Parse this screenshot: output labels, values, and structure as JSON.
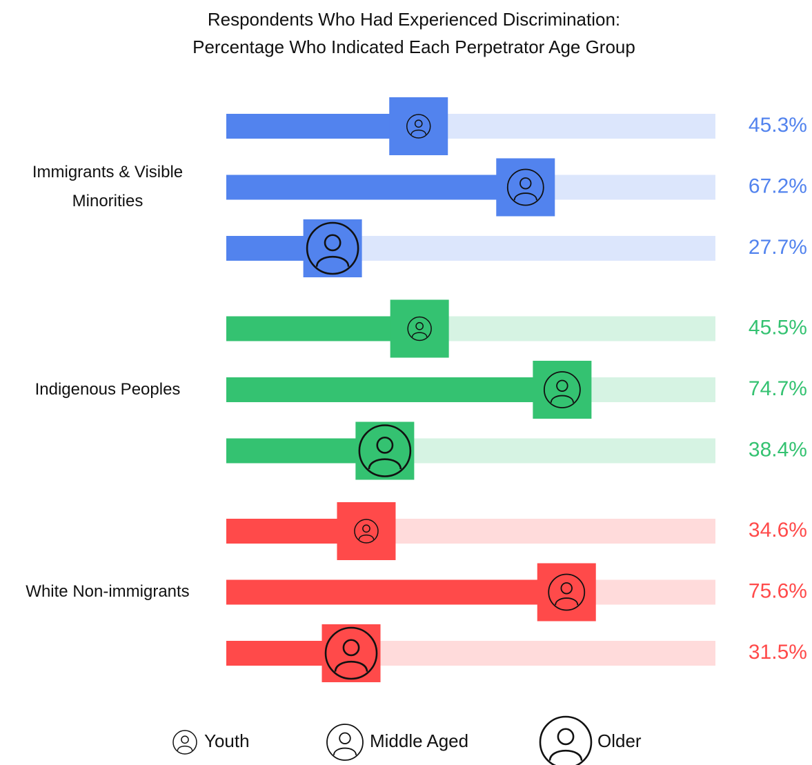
{
  "chart_data": {
    "type": "progress",
    "title": "Respondents Who Had Experienced Discrimination:\nPercentage Who Indicated Each Perpetrator Age Group",
    "categories": [
      "Immigrants & Visible Minorities",
      "Indigenous Peoples",
      "White Non-immigrants"
    ],
    "colors": [
      "#5283ee",
      "#34c271",
      "#ff4a4a"
    ],
    "xlim": [
      0,
      100
    ],
    "series": [
      {
        "name": "Youth",
        "values": [
          45.3,
          45.5,
          34.6
        ],
        "value_labels": [
          "45.3%",
          "45.5%",
          "34.6%"
        ]
      },
      {
        "name": "Middle Aged",
        "values": [
          67.2,
          74.7,
          75.6
        ],
        "value_labels": [
          "67.2%",
          "74.7%",
          "75.6%"
        ]
      },
      {
        "name": "Older",
        "values": [
          27.7,
          38.4,
          31.5
        ],
        "value_labels": [
          "27.7%",
          "38.4%",
          "31.5%"
        ]
      }
    ]
  }
}
